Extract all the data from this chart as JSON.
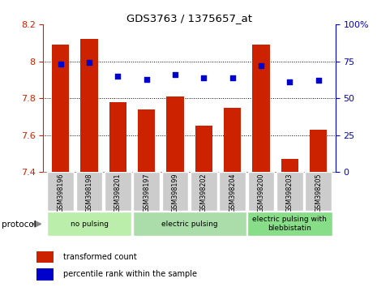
{
  "title": "GDS3763 / 1375657_at",
  "samples": [
    "GSM398196",
    "GSM398198",
    "GSM398201",
    "GSM398197",
    "GSM398199",
    "GSM398202",
    "GSM398204",
    "GSM398200",
    "GSM398203",
    "GSM398205"
  ],
  "bar_values": [
    8.09,
    8.12,
    7.78,
    7.74,
    7.81,
    7.65,
    7.75,
    8.09,
    7.47,
    7.63
  ],
  "dot_values": [
    73,
    74,
    65,
    63,
    66,
    64,
    64,
    72,
    61,
    62
  ],
  "bar_color": "#cc2200",
  "dot_color": "#0000cc",
  "ylim_left": [
    7.4,
    8.2
  ],
  "ylim_right": [
    0,
    100
  ],
  "yticks_left": [
    7.4,
    7.6,
    7.8,
    8.0,
    8.2
  ],
  "yticks_right": [
    0,
    25,
    50,
    75,
    100
  ],
  "ytick_labels_left": [
    "7.4",
    "7.6",
    "7.8",
    "8",
    "8.2"
  ],
  "ytick_labels_right": [
    "0",
    "25",
    "50",
    "75",
    "100%"
  ],
  "groups": [
    {
      "label": "no pulsing",
      "start": 0,
      "end": 2,
      "color": "#bbeeaa"
    },
    {
      "label": "electric pulsing",
      "start": 3,
      "end": 6,
      "color": "#aaddaa"
    },
    {
      "label": "electric pulsing with\nblebbistatin",
      "start": 7,
      "end": 9,
      "color": "#88dd88"
    }
  ],
  "protocol_label": "protocol",
  "legend_bar_label": "transformed count",
  "legend_dot_label": "percentile rank within the sample",
  "hgrid_lines": [
    7.6,
    7.8,
    8.0
  ],
  "bar_bottom": 7.4
}
